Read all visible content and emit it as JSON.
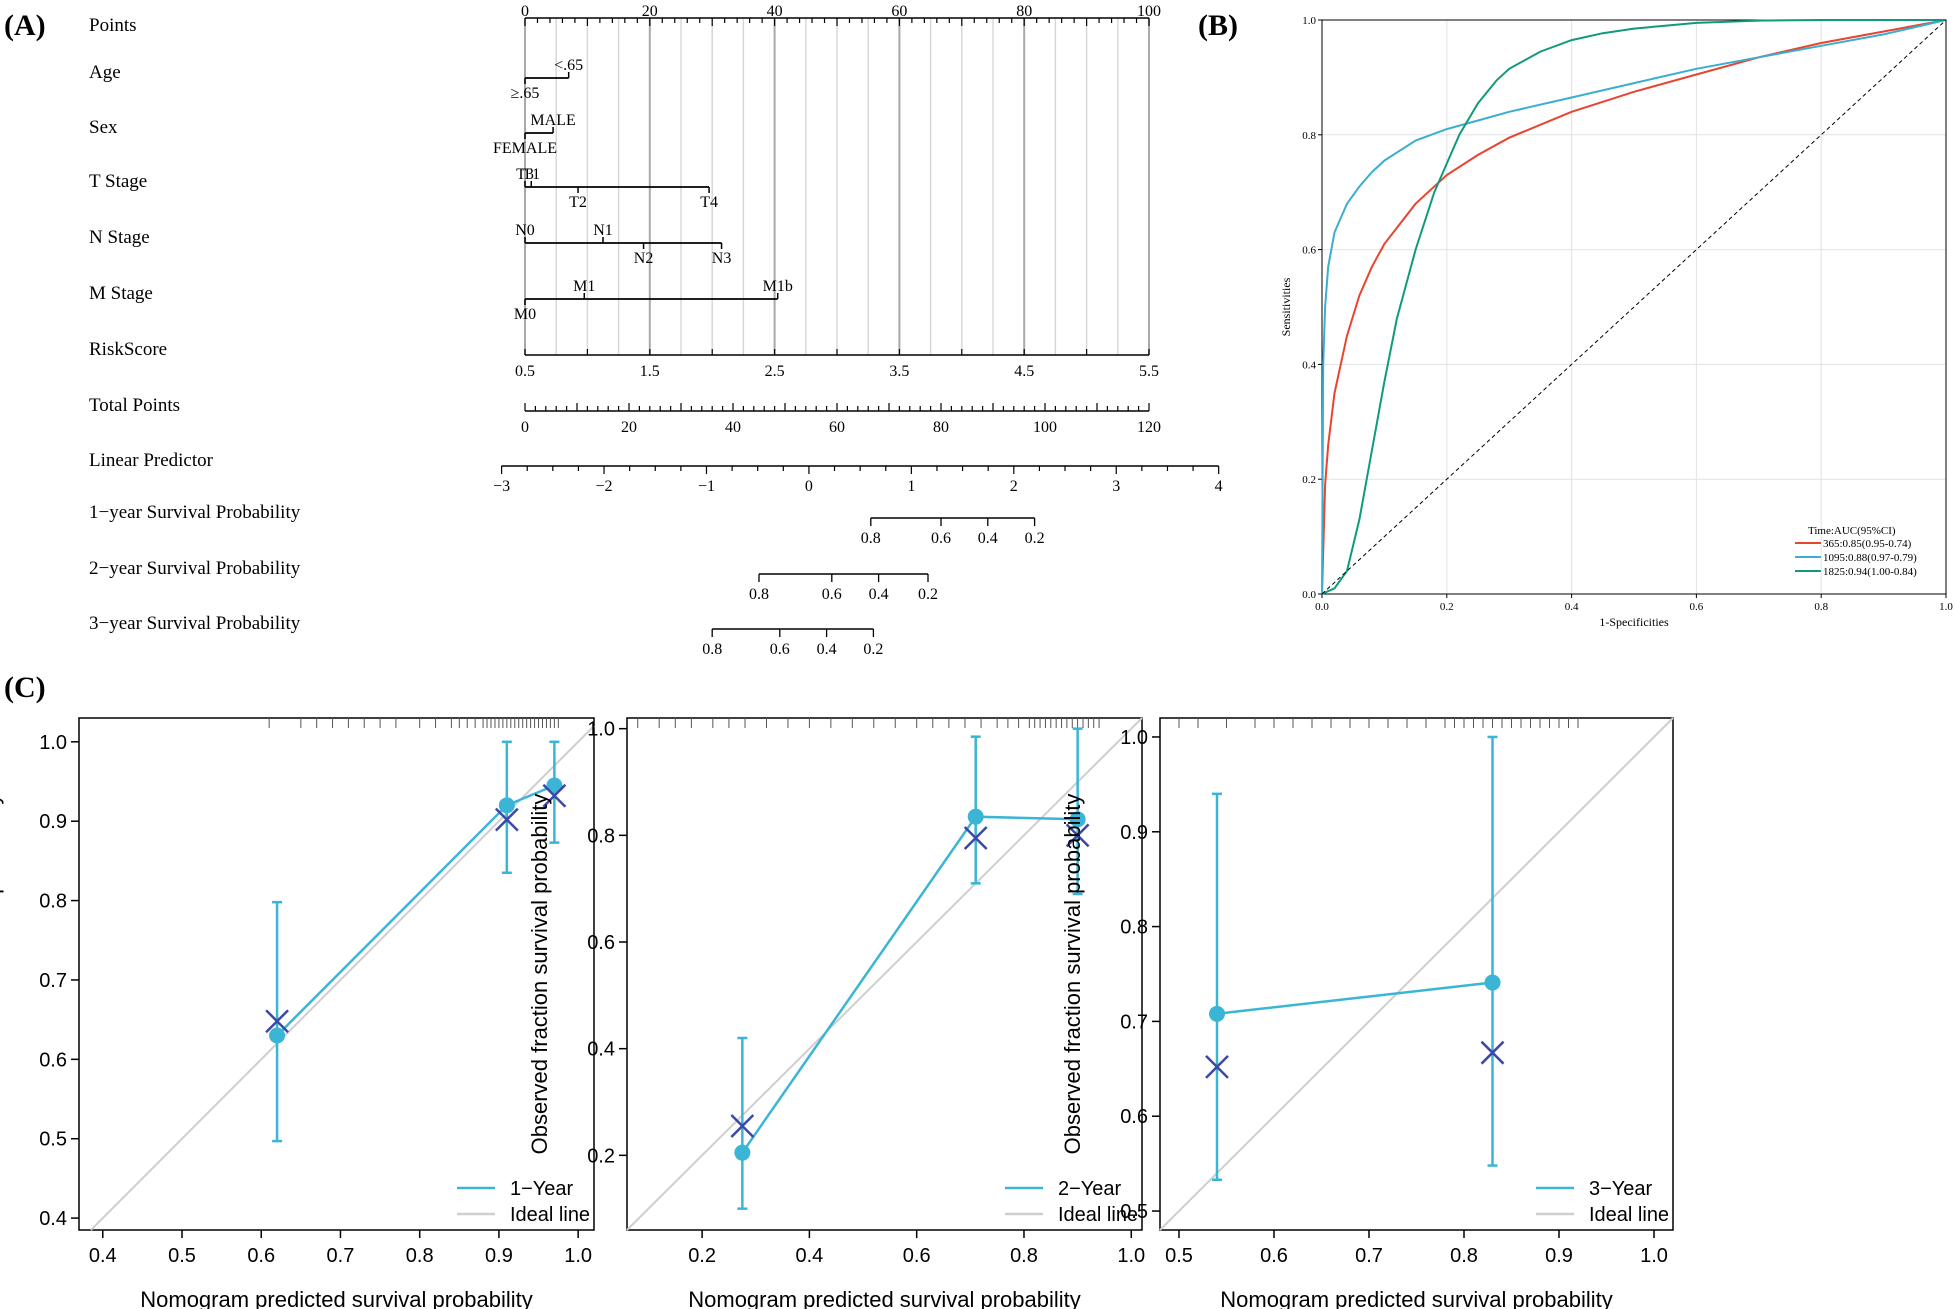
{
  "figure": {
    "panel_a": "(A)",
    "panel_b": "(B)",
    "panel_c": "(C)"
  },
  "chart_data": [
    {
      "type": "nomogram",
      "id": "nomogram",
      "rows": [
        {
          "key": "points",
          "label": "Points",
          "ticks": [
            {
              "v": 0,
              "t": "0"
            },
            {
              "v": 20,
              "t": "20"
            },
            {
              "v": 40,
              "t": "40"
            },
            {
              "v": 60,
              "t": "60"
            },
            {
              "v": 80,
              "t": "80"
            },
            {
              "v": 100,
              "t": "100"
            }
          ]
        },
        {
          "key": "age",
          "label": "Age",
          "levels": [
            {
              "t": "<.65",
              "pts": 7
            },
            {
              "t": "≥.65",
              "pts": 0
            }
          ]
        },
        {
          "key": "sex",
          "label": "Sex",
          "levels": [
            {
              "t": "MALE",
              "pts": 4.5
            },
            {
              "t": "FEMALE",
              "pts": 0
            }
          ]
        },
        {
          "key": "tstage",
          "label": "T Stage",
          "levels": [
            {
              "t": "T1",
              "pts": 1
            },
            {
              "t": "T4",
              "pts": 29.5
            },
            {
              "t": "T3",
              "pts": 0
            },
            {
              "t": "T2",
              "pts": 8.5
            }
          ]
        },
        {
          "key": "nstage",
          "label": "N Stage",
          "levels": [
            {
              "t": "N1",
              "pts": 12.5
            },
            {
              "t": "N3",
              "pts": 31.5
            },
            {
              "t": "N0",
              "pts": 0
            },
            {
              "t": "N2",
              "pts": 19
            }
          ]
        },
        {
          "key": "mstage",
          "label": "M Stage",
          "levels": [
            {
              "t": "M1",
              "pts": 9.5
            },
            {
              "t": "M0",
              "pts": 0
            },
            {
              "t": "M1b",
              "pts": 40.5
            }
          ]
        },
        {
          "key": "riskscore",
          "label": "RiskScore",
          "ticks": [
            {
              "v": 0.5,
              "t": "0.5"
            },
            {
              "v": 1.5,
              "t": "1.5"
            },
            {
              "v": 2.5,
              "t": "2.5"
            },
            {
              "v": 3.5,
              "t": "3.5"
            },
            {
              "v": 4.5,
              "t": "4.5"
            },
            {
              "v": 5.5,
              "t": "5.5"
            }
          ]
        },
        {
          "key": "total",
          "label": "Total Points",
          "ticks": [
            {
              "v": 0,
              "t": "0"
            },
            {
              "v": 20,
              "t": "20"
            },
            {
              "v": 40,
              "t": "40"
            },
            {
              "v": 60,
              "t": "60"
            },
            {
              "v": 80,
              "t": "80"
            },
            {
              "v": 100,
              "t": "100"
            },
            {
              "v": 120,
              "t": "120"
            }
          ]
        },
        {
          "key": "lp",
          "label": "Linear Predictor",
          "ticks": [
            {
              "v": -3,
              "t": "−3"
            },
            {
              "v": -2,
              "t": "−2"
            },
            {
              "v": -1,
              "t": "−1"
            },
            {
              "v": 0,
              "t": "0"
            },
            {
              "v": 1,
              "t": "1"
            },
            {
              "v": 2,
              "t": "2"
            },
            {
              "v": 3,
              "t": "3"
            },
            {
              "v": 4,
              "t": "4"
            }
          ]
        },
        {
          "key": "s1",
          "label": "1−year Survival Probability",
          "ticks": [
            {
              "total": 66.5,
              "t": "0.8"
            },
            {
              "total": 80,
              "t": "0.6"
            },
            {
              "total": 89,
              "t": "0.4"
            },
            {
              "total": 98,
              "t": "0.2"
            }
          ]
        },
        {
          "key": "s2",
          "label": "2−year Survival Probability",
          "ticks": [
            {
              "total": 45,
              "t": "0.8"
            },
            {
              "total": 59,
              "t": "0.6"
            },
            {
              "total": 68,
              "t": "0.4"
            },
            {
              "total": 77.5,
              "t": "0.2"
            }
          ]
        },
        {
          "key": "s3",
          "label": "3−year Survival Probability",
          "ticks": [
            {
              "total": 36,
              "t": "0.8"
            },
            {
              "total": 49,
              "t": "0.6"
            },
            {
              "total": 58,
              "t": "0.4"
            },
            {
              "total": 67,
              "t": "0.2"
            }
          ]
        }
      ]
    },
    {
      "type": "line",
      "id": "roc",
      "xlabel": "1-Specificities",
      "ylabel": "Sensitivities",
      "xlim": [
        0,
        1
      ],
      "ylim": [
        0,
        1
      ],
      "xticks": [
        "0.0",
        "0.2",
        "0.4",
        "0.6",
        "0.8",
        "1.0"
      ],
      "yticks": [
        "0.0",
        "0.2",
        "0.4",
        "0.6",
        "0.8",
        "1.0"
      ],
      "legend_title": "Time:AUC(95%CI)",
      "series": [
        {
          "name": "365:0.85(0.95-0.74)",
          "color": "#e8442f",
          "x": [
            0,
            0.005,
            0.01,
            0.02,
            0.04,
            0.06,
            0.08,
            0.1,
            0.15,
            0.2,
            0.25,
            0.3,
            0.4,
            0.5,
            0.6,
            0.7,
            0.8,
            0.9,
            1.0
          ],
          "y": [
            0,
            0.19,
            0.26,
            0.35,
            0.45,
            0.52,
            0.57,
            0.61,
            0.68,
            0.73,
            0.765,
            0.795,
            0.84,
            0.875,
            0.905,
            0.935,
            0.96,
            0.98,
            1.0
          ]
        },
        {
          "name": "1095:0.88(0.97-0.79)",
          "color": "#3aaed0",
          "x": [
            0,
            0.002,
            0.005,
            0.01,
            0.02,
            0.04,
            0.06,
            0.08,
            0.1,
            0.15,
            0.2,
            0.25,
            0.3,
            0.4,
            0.5,
            0.6,
            0.7,
            0.8,
            0.9,
            1.0
          ],
          "y": [
            0,
            0.4,
            0.5,
            0.57,
            0.63,
            0.68,
            0.71,
            0.735,
            0.755,
            0.79,
            0.81,
            0.825,
            0.84,
            0.865,
            0.89,
            0.915,
            0.935,
            0.955,
            0.975,
            1.0
          ]
        },
        {
          "name": "1825:0.94(1.00-0.84)",
          "color": "#0f9b7a",
          "x": [
            0,
            0.02,
            0.04,
            0.06,
            0.08,
            0.1,
            0.12,
            0.15,
            0.18,
            0.2,
            0.22,
            0.25,
            0.28,
            0.3,
            0.35,
            0.4,
            0.45,
            0.5,
            0.6,
            0.7,
            0.8,
            1.0
          ],
          "y": [
            0,
            0.01,
            0.04,
            0.13,
            0.25,
            0.37,
            0.48,
            0.6,
            0.7,
            0.75,
            0.8,
            0.855,
            0.895,
            0.915,
            0.945,
            0.965,
            0.977,
            0.985,
            0.995,
            0.999,
            1.0,
            1.0
          ]
        },
        {
          "name": "reference",
          "color": "#000000",
          "dashed": true,
          "x": [
            0,
            1
          ],
          "y": [
            0,
            1
          ]
        }
      ]
    },
    {
      "type": "scatter",
      "id": "cal1",
      "xlabel": "Nomogram predicted survival probability",
      "ylabel": "Observed fraction survival probability",
      "xlim": [
        0.37,
        1.02
      ],
      "ylim": [
        0.385,
        1.03
      ],
      "xticks": [
        0.4,
        0.5,
        0.6,
        0.7,
        0.8,
        0.9,
        1.0
      ],
      "yticks": [
        0.4,
        0.5,
        0.6,
        0.7,
        0.8,
        0.9,
        1.0
      ],
      "legend": [
        "1−Year",
        "Ideal line"
      ],
      "points": [
        {
          "x": 0.62,
          "y": 0.63,
          "lo": 0.497,
          "hi": 0.798,
          "cross": 0.648
        },
        {
          "x": 0.91,
          "y": 0.92,
          "lo": 0.835,
          "hi": 1.0,
          "cross": 0.902
        },
        {
          "x": 0.97,
          "y": 0.945,
          "lo": 0.873,
          "hi": 1.0,
          "cross": 0.932
        }
      ],
      "rug": [
        0.61,
        0.65,
        0.67,
        0.69,
        0.71,
        0.73,
        0.75,
        0.77,
        0.8,
        0.82,
        0.84,
        0.85,
        0.86,
        0.87,
        0.88,
        0.885,
        0.89,
        0.895,
        0.9,
        0.905,
        0.91,
        0.915,
        0.92,
        0.925,
        0.93,
        0.935,
        0.94,
        0.945,
        0.95,
        0.955,
        0.96,
        0.965,
        0.97,
        0.975
      ]
    },
    {
      "type": "scatter",
      "id": "cal2",
      "xlabel": "Nomogram predicted survival probability",
      "ylabel": "Observed fraction survival probability",
      "xlim": [
        0.06,
        1.02
      ],
      "ylim": [
        0.06,
        1.02
      ],
      "xticks": [
        0.2,
        0.4,
        0.6,
        0.8,
        1.0
      ],
      "yticks": [
        0.2,
        0.4,
        0.6,
        0.8,
        1.0
      ],
      "legend": [
        "2−Year",
        "Ideal line"
      ],
      "points": [
        {
          "x": 0.275,
          "y": 0.205,
          "lo": 0.1,
          "hi": 0.42,
          "cross": 0.255
        },
        {
          "x": 0.71,
          "y": 0.835,
          "lo": 0.71,
          "hi": 0.985,
          "cross": 0.795
        },
        {
          "x": 0.9,
          "y": 0.83,
          "lo": 0.69,
          "hi": 1.0,
          "cross": 0.8
        }
      ],
      "rug": [
        0.08,
        0.12,
        0.15,
        0.18,
        0.22,
        0.25,
        0.28,
        0.32,
        0.36,
        0.4,
        0.44,
        0.48,
        0.52,
        0.56,
        0.6,
        0.63,
        0.66,
        0.69,
        0.72,
        0.75,
        0.77,
        0.79,
        0.81,
        0.82,
        0.83,
        0.84,
        0.85,
        0.86,
        0.87,
        0.88,
        0.89,
        0.9,
        0.91,
        0.92,
        0.93,
        0.94
      ]
    },
    {
      "type": "scatter",
      "id": "cal3",
      "xlabel": "Nomogram predicted survival probability",
      "ylabel": "Observed fraction survival probability",
      "xlim": [
        0.48,
        1.02
      ],
      "ylim": [
        0.48,
        1.02
      ],
      "xticks": [
        0.5,
        0.6,
        0.7,
        0.8,
        0.9,
        1.0
      ],
      "yticks": [
        0.5,
        0.6,
        0.7,
        0.8,
        0.9,
        1.0
      ],
      "legend": [
        "3−Year",
        "Ideal line"
      ],
      "points": [
        {
          "x": 0.54,
          "y": 0.708,
          "lo": 0.533,
          "hi": 0.94,
          "cross": 0.652
        },
        {
          "x": 0.83,
          "y": 0.741,
          "lo": 0.548,
          "hi": 1.0,
          "cross": 0.667
        }
      ],
      "rug": [
        0.5,
        0.52,
        0.55,
        0.58,
        0.6,
        0.62,
        0.64,
        0.66,
        0.68,
        0.7,
        0.72,
        0.74,
        0.76,
        0.78,
        0.79,
        0.8,
        0.81,
        0.82,
        0.83,
        0.84,
        0.85,
        0.86,
        0.87,
        0.88,
        0.89,
        0.9,
        0.91,
        0.92
      ]
    }
  ],
  "colors": {
    "cal_line": "#3ab5d6",
    "cross": "#3c48a8",
    "ideal": "#cfcfcf"
  }
}
